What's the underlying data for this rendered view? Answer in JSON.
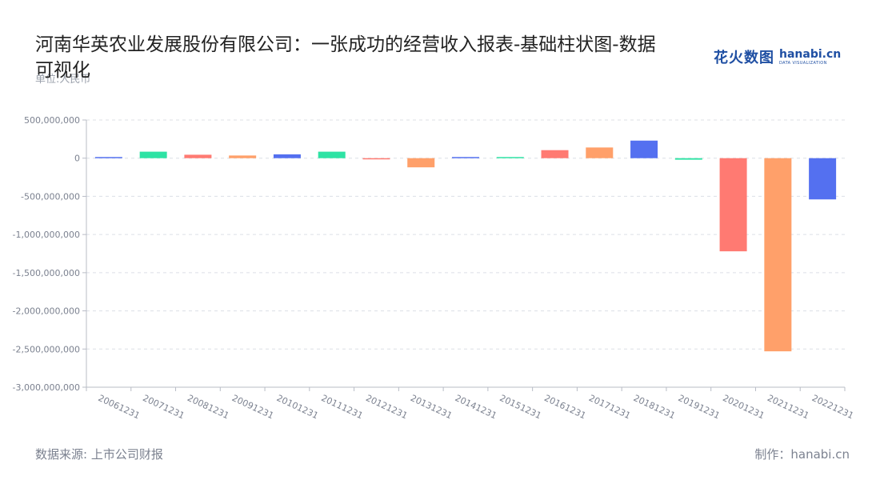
{
  "title": "河南华英农业发展股份有限公司：一张成功的经营收入报表-基础柱状图-数据可视化",
  "unit_label": "单位:人民币",
  "logo": {
    "cn": "花火数图",
    "en": "hanabi.cn",
    "sub": "DATA VISUALIZATION"
  },
  "footer": {
    "source": "数据来源: 上市公司财报",
    "credit": "制作：hanabi.cn"
  },
  "chart_data": {
    "type": "bar",
    "title": "河南华英农业发展股份有限公司：一张成功的经营收入报表-基础柱状图-数据可视化",
    "xlabel": "",
    "ylabel": "单位:人民币",
    "categories": [
      "20061231",
      "20071231",
      "20081231",
      "20091231",
      "20101231",
      "20111231",
      "20121231",
      "20131231",
      "20141231",
      "20151231",
      "20161231",
      "20171231",
      "20181231",
      "20191231",
      "20201231",
      "20211231",
      "20221231"
    ],
    "values": [
      15000000,
      85000000,
      45000000,
      35000000,
      50000000,
      85000000,
      -5000000,
      -120000000,
      15000000,
      15000000,
      105000000,
      140000000,
      230000000,
      -20000000,
      -1220000000,
      -2530000000,
      -540000000
    ],
    "bar_colors": [
      "#5470f0",
      "#2ee3a4",
      "#ff7a72",
      "#ffa06a"
    ],
    "ylim": [
      -3000000000,
      500000000
    ],
    "yticks": [
      500000000,
      0,
      -500000000,
      -1000000000,
      -1500000000,
      -2000000000,
      -2500000000,
      -3000000000
    ],
    "ytick_labels": [
      "500,000,000",
      "0",
      "-500,000,000",
      "-1,000,000,000",
      "-1,500,000,000",
      "-2,000,000,000",
      "-2,500,000,000",
      "-3,000,000,000"
    ],
    "grid": true,
    "legend": "none"
  }
}
